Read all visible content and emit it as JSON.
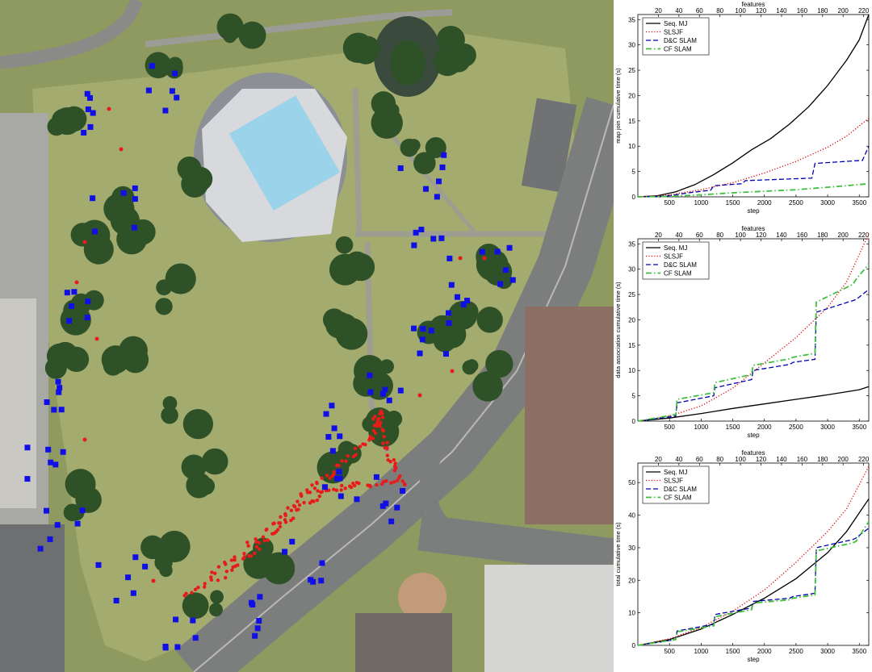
{
  "colors": {
    "grass": "#9aa468",
    "tree": "#2f5128",
    "road": "#7d7f7e",
    "landmark_blue": "#1010e6",
    "path_red": "#e81a1a",
    "seq_mj": "#000000",
    "slsjf": "#e00000",
    "dc_slam": "#0000b0",
    "cf_slam": "#40c040"
  },
  "map": {
    "landmark_marker": "blue-square-icon",
    "trajectory_marker": "red-point-icon"
  },
  "chart_data": [
    {
      "type": "line",
      "xlabel": "step",
      "ylabel": "map join cumulative time (s)",
      "top_axis_label": "features",
      "xlim": [
        0,
        3650
      ],
      "ylim": [
        0,
        36
      ],
      "top_lim": [
        0,
        225
      ],
      "xticks": [
        500,
        1000,
        1500,
        2000,
        2500,
        3000,
        3500
      ],
      "yticks": [
        0,
        5,
        10,
        15,
        20,
        25,
        30,
        35
      ],
      "top_ticks": [
        20,
        40,
        60,
        80,
        100,
        120,
        140,
        160,
        180,
        200,
        220
      ],
      "legend_position": "top-left",
      "series": [
        {
          "name": "Seq. MJ",
          "style": "solid",
          "color": "#000000",
          "x": [
            0,
            300,
            600,
            900,
            1200,
            1500,
            1800,
            2100,
            2400,
            2700,
            3000,
            3300,
            3500,
            3650
          ],
          "y": [
            0,
            0.2,
            1.0,
            2.4,
            4.4,
            6.7,
            9.3,
            11.5,
            14.4,
            17.8,
            22.0,
            27.0,
            31.0,
            36.0
          ]
        },
        {
          "name": "SLSJF",
          "style": "dotted",
          "color": "#e00000",
          "x": [
            0,
            500,
            1000,
            1500,
            2000,
            2500,
            3000,
            3300,
            3650
          ],
          "y": [
            0,
            0.4,
            1.4,
            2.8,
            4.7,
            7.0,
            9.8,
            12.0,
            15.5
          ]
        },
        {
          "name": "D&C SLAM",
          "style": "dashed",
          "color": "#0000b0",
          "x": [
            0,
            500,
            800,
            1150,
            1200,
            1650,
            1700,
            2750,
            2800,
            3050,
            3550,
            3600,
            3650
          ],
          "y": [
            0,
            0.2,
            0.8,
            1.3,
            2.2,
            2.6,
            3.2,
            3.7,
            6.6,
            6.8,
            7.2,
            8.6,
            10.0
          ]
        },
        {
          "name": "CF SLAM",
          "style": "dashdot",
          "color": "#40c040",
          "x": [
            0,
            500,
            1000,
            1500,
            2000,
            2500,
            2800,
            3000,
            3300,
            3650
          ],
          "y": [
            0,
            0.1,
            0.4,
            0.8,
            1.1,
            1.4,
            1.7,
            1.9,
            2.2,
            2.6
          ]
        }
      ]
    },
    {
      "type": "line",
      "xlabel": "step",
      "ylabel": "data association cumulative time (s)",
      "top_axis_label": "features",
      "xlim": [
        0,
        3650
      ],
      "ylim": [
        0,
        36
      ],
      "top_lim": [
        0,
        225
      ],
      "xticks": [
        500,
        1000,
        1500,
        2000,
        2500,
        3000,
        3500
      ],
      "yticks": [
        0,
        5,
        10,
        15,
        20,
        25,
        30,
        35
      ],
      "top_ticks": [
        20,
        40,
        60,
        80,
        100,
        120,
        140,
        160,
        180,
        200,
        220
      ],
      "legend_position": "top-left",
      "series": [
        {
          "name": "Seq. MJ",
          "style": "solid",
          "color": "#000000",
          "x": [
            0,
            500,
            1000,
            1500,
            2000,
            2500,
            3000,
            3500,
            3650
          ],
          "y": [
            0,
            0.6,
            1.5,
            2.5,
            3.4,
            4.3,
            5.2,
            6.2,
            6.8
          ]
        },
        {
          "name": "SLSJF",
          "style": "dotted",
          "color": "#e00000",
          "x": [
            0,
            500,
            1000,
            1500,
            2000,
            2500,
            3000,
            3300,
            3650
          ],
          "y": [
            0,
            1.0,
            3.0,
            6.5,
            11.5,
            16.5,
            22.5,
            27.5,
            37.0
          ]
        },
        {
          "name": "D&C SLAM",
          "style": "dashed",
          "color": "#0000b0",
          "x": [
            0,
            600,
            620,
            1200,
            1220,
            1800,
            1820,
            2400,
            2450,
            2800,
            2820,
            3400,
            3450,
            3650
          ],
          "y": [
            0,
            1.0,
            3.6,
            5.0,
            6.6,
            8.2,
            10.0,
            11.2,
            11.6,
            12.2,
            21.5,
            23.8,
            24.0,
            26.0
          ]
        },
        {
          "name": "CF SLAM",
          "style": "dashdot",
          "color": "#40c040",
          "x": [
            0,
            600,
            620,
            1200,
            1220,
            1800,
            1820,
            2400,
            2450,
            2800,
            2820,
            3400,
            3450,
            3650
          ],
          "y": [
            0,
            1.3,
            4.3,
            5.6,
            7.6,
            9.2,
            11.0,
            12.3,
            12.6,
            13.4,
            23.5,
            27.0,
            28.0,
            31.0
          ]
        }
      ]
    },
    {
      "type": "line",
      "xlabel": "step",
      "ylabel": "total cumulative time (s)",
      "top_axis_label": "features",
      "xlim": [
        0,
        3650
      ],
      "ylim": [
        0,
        56
      ],
      "top_lim": [
        0,
        225
      ],
      "xticks": [
        500,
        1000,
        1500,
        2000,
        2500,
        3000,
        3500
      ],
      "yticks": [
        0,
        10,
        20,
        30,
        40,
        50
      ],
      "top_ticks": [
        20,
        40,
        60,
        80,
        100,
        120,
        140,
        160,
        180,
        200,
        220
      ],
      "legend_position": "top-left",
      "series": [
        {
          "name": "Seq. MJ",
          "style": "solid",
          "color": "#000000",
          "x": [
            0,
            500,
            1000,
            1500,
            2000,
            2500,
            3000,
            3300,
            3650
          ],
          "y": [
            0,
            1.8,
            5.0,
            9.5,
            14.5,
            20.5,
            28.5,
            35.0,
            45.0
          ]
        },
        {
          "name": "SLSJF",
          "style": "dotted",
          "color": "#e00000",
          "x": [
            0,
            500,
            1000,
            1500,
            2000,
            2500,
            3000,
            3300,
            3650
          ],
          "y": [
            0,
            2.0,
            5.5,
            10.5,
            17.0,
            25.5,
            35.0,
            42.0,
            55.0
          ]
        },
        {
          "name": "D&C SLAM",
          "style": "dashed",
          "color": "#0000b0",
          "x": [
            0,
            600,
            620,
            1200,
            1220,
            1800,
            1820,
            2400,
            2450,
            2800,
            2820,
            3400,
            3450,
            3650
          ],
          "y": [
            0,
            1.8,
            4.4,
            6.5,
            9.5,
            11.5,
            13.5,
            14.5,
            15.0,
            16.0,
            30.0,
            32.5,
            33.0,
            36.0
          ]
        },
        {
          "name": "CF SLAM",
          "style": "dashdot",
          "color": "#40c040",
          "x": [
            0,
            600,
            620,
            1200,
            1220,
            1800,
            1820,
            2400,
            2450,
            2800,
            2820,
            3400,
            3450,
            3650
          ],
          "y": [
            0,
            1.8,
            4.2,
            6.0,
            8.8,
            11.0,
            13.0,
            14.0,
            14.5,
            15.5,
            29.0,
            31.5,
            32.0,
            38.0
          ]
        }
      ]
    }
  ]
}
